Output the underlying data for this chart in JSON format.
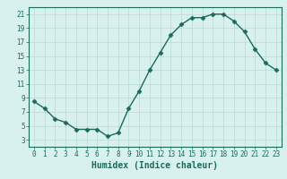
{
  "x": [
    0,
    1,
    2,
    3,
    4,
    5,
    6,
    7,
    8,
    9,
    10,
    11,
    12,
    13,
    14,
    15,
    16,
    17,
    18,
    19,
    20,
    21,
    22,
    23
  ],
  "y": [
    8.5,
    7.5,
    6.0,
    5.5,
    4.5,
    4.5,
    4.5,
    3.5,
    4.0,
    7.5,
    10.0,
    13.0,
    15.5,
    18.0,
    19.5,
    20.5,
    20.5,
    21.0,
    21.0,
    20.0,
    18.5,
    16.0,
    14.0,
    13.0
  ],
  "line_color": "#1a6b5a",
  "marker": "D",
  "marker_size": 2.5,
  "background_color": "#d8f0ee",
  "grid_color": "#b8d8d4",
  "xlabel": "Humidex (Indice chaleur)",
  "xlabel_fontsize": 7,
  "xlim": [
    -0.5,
    23.5
  ],
  "ylim": [
    2,
    22
  ],
  "yticks": [
    3,
    5,
    7,
    9,
    11,
    13,
    15,
    17,
    19,
    21
  ],
  "xticks": [
    0,
    1,
    2,
    3,
    4,
    5,
    6,
    7,
    8,
    9,
    10,
    11,
    12,
    13,
    14,
    15,
    16,
    17,
    18,
    19,
    20,
    21,
    22,
    23
  ],
  "tick_fontsize": 5.5,
  "axes_color": "#1a6b5a",
  "spine_color": "#1a6b5a",
  "linewidth": 1.0
}
